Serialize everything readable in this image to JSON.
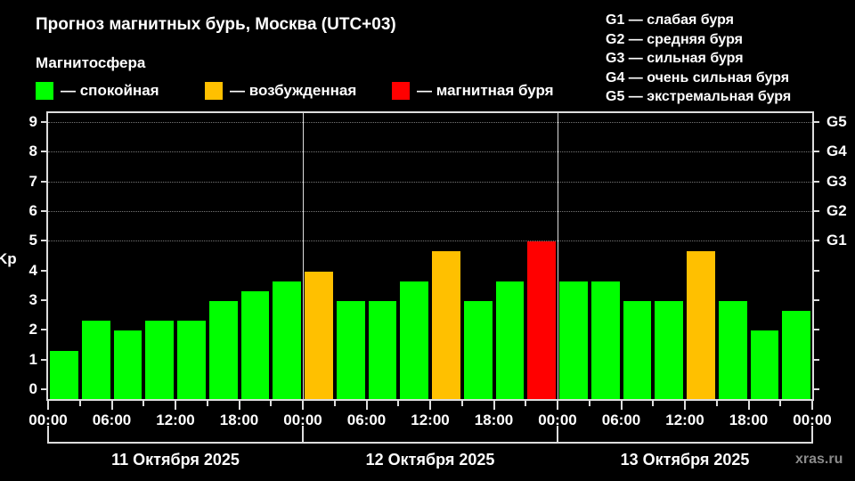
{
  "title": "Прогноз магнитных бурь, Москва (UTC+03)",
  "legend": {
    "heading": "Магнитосфера",
    "items": [
      {
        "label": "— спокойная",
        "color": "#00ff00"
      },
      {
        "label": "— возбужденная",
        "color": "#ffc000"
      },
      {
        "label": "— магнитная буря",
        "color": "#ff0000"
      }
    ]
  },
  "g_legend": [
    "G1 — слабая буря",
    "G2 — средняя буря",
    "G3 — сильная буря",
    "G4 — очень сильная буря",
    "G5 — экстремальная буря"
  ],
  "source": "xras.ru",
  "chart_data": {
    "type": "bar",
    "title": "Прогноз магнитных бурь, Москва (UTC+03)",
    "ylabel": "Kp",
    "ylim": [
      0,
      9
    ],
    "yticks": [
      "0",
      "1",
      "2",
      "3",
      "4",
      "5",
      "6",
      "7",
      "8",
      "9"
    ],
    "right_axis_ticks": [
      {
        "value": 5,
        "label": "G1"
      },
      {
        "value": 6,
        "label": "G2"
      },
      {
        "value": 7,
        "label": "G3"
      },
      {
        "value": 8,
        "label": "G4"
      },
      {
        "value": 9,
        "label": "G5"
      }
    ],
    "xtick_labels": [
      "00:00",
      "06:00",
      "12:00",
      "18:00",
      "00:00",
      "06:00",
      "12:00",
      "18:00",
      "00:00",
      "06:00",
      "12:00",
      "18:00",
      "00:00"
    ],
    "days": [
      "11 Октября 2025",
      "12 Октября 2025",
      "13 Октября 2025"
    ],
    "interval_hours": 3,
    "grid": "dotted horizontal at Kp 5-9",
    "values": [
      1.33,
      2.33,
      2.0,
      2.33,
      2.33,
      3.0,
      3.33,
      3.67,
      4.0,
      3.0,
      3.0,
      3.67,
      4.67,
      3.0,
      3.67,
      5.0,
      3.67,
      3.67,
      3.0,
      3.0,
      4.67,
      3.0,
      2.0,
      2.67
    ],
    "states": [
      "calm",
      "calm",
      "calm",
      "calm",
      "calm",
      "calm",
      "calm",
      "calm",
      "excited",
      "calm",
      "calm",
      "calm",
      "excited",
      "calm",
      "calm",
      "storm",
      "calm",
      "calm",
      "calm",
      "calm",
      "excited",
      "calm",
      "calm",
      "calm"
    ],
    "state_colors": {
      "calm": "#00ff00",
      "excited": "#ffc000",
      "storm": "#ff0000"
    }
  }
}
